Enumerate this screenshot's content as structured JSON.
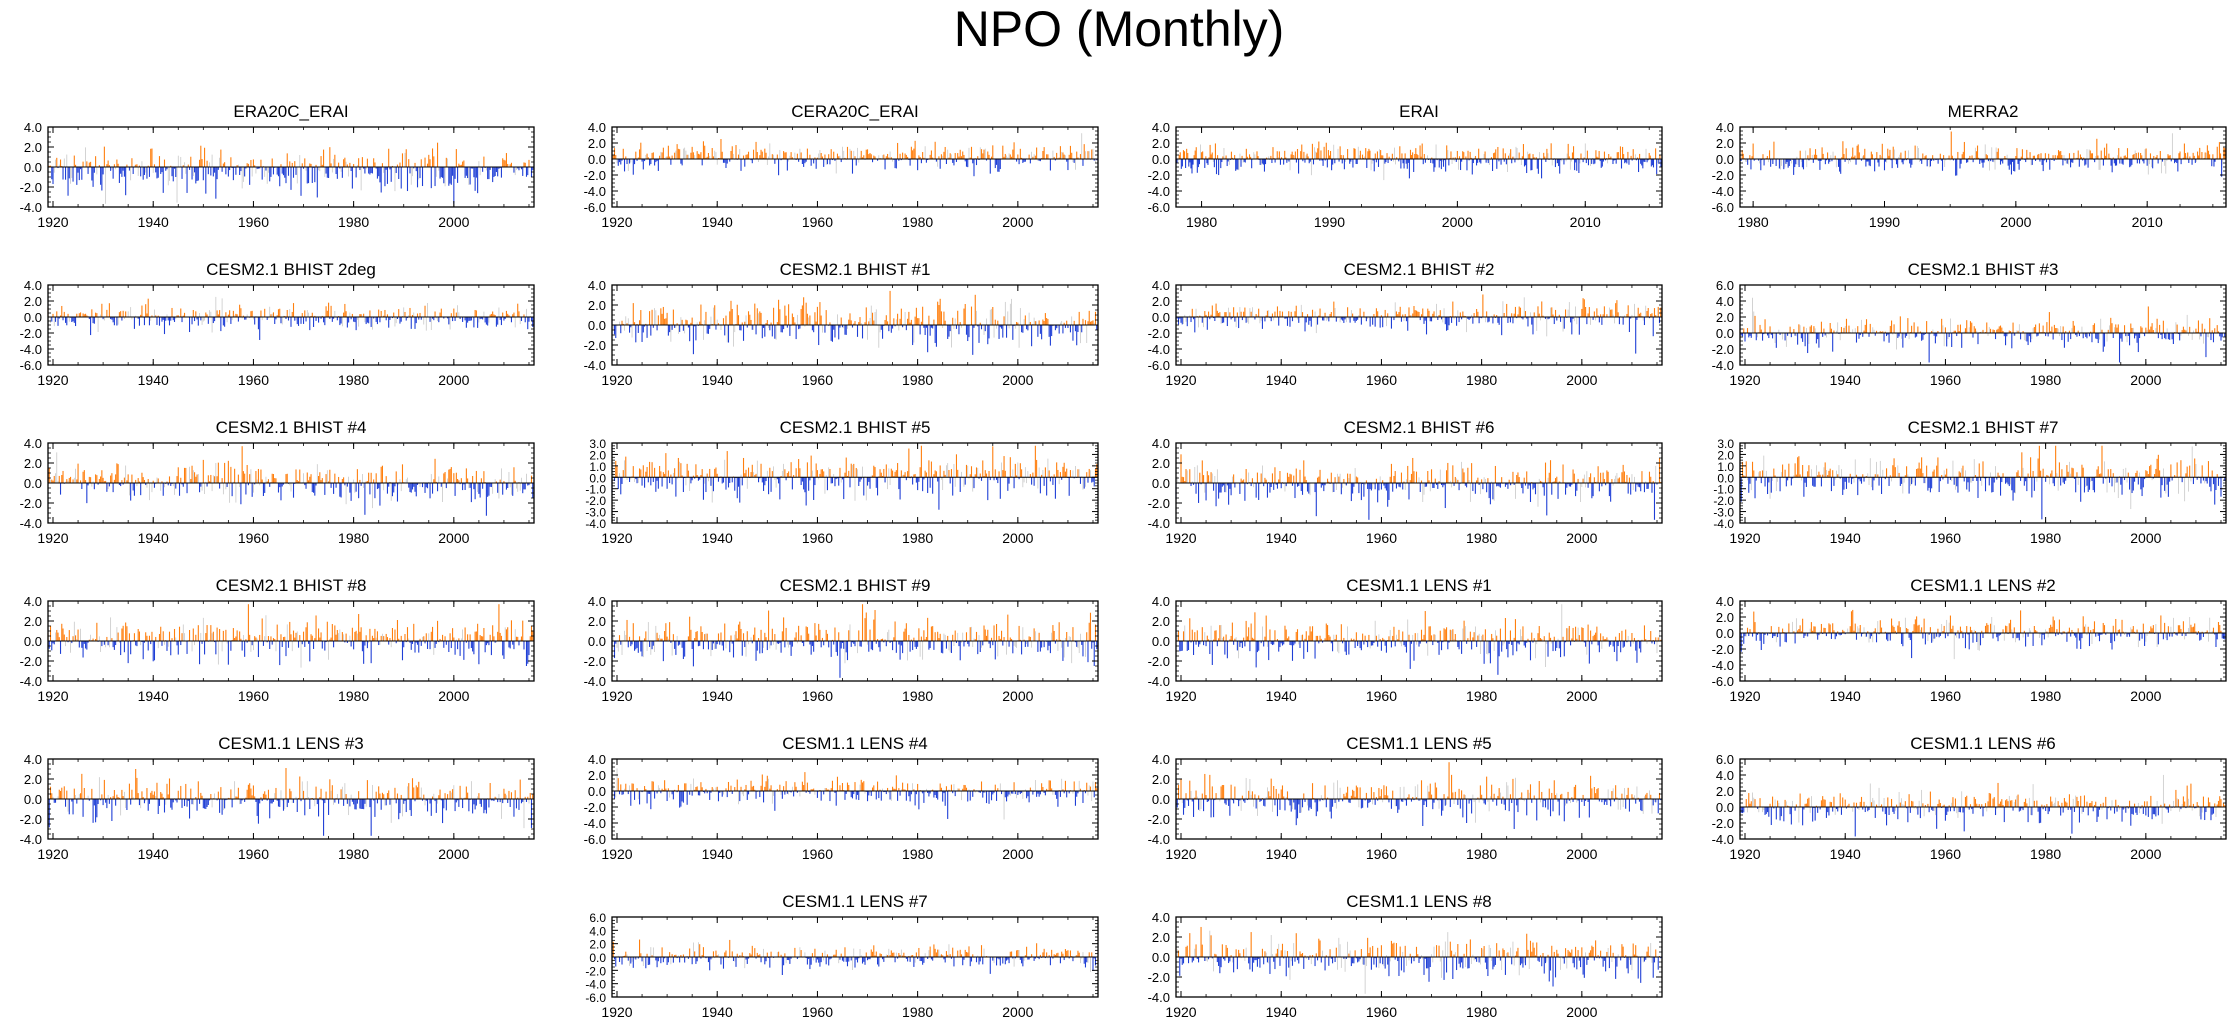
{
  "title": "NPO (Monthly)",
  "colors": {
    "positive": "#ff7f0e",
    "negative": "#1f3fd6",
    "faint": "#c8c8c8",
    "axis": "#000000"
  },
  "chart_data": [
    {
      "type": "bar",
      "title": "ERA20C_ERAI",
      "ylim": [
        -4,
        4
      ],
      "yticks": [
        "4.0",
        "2.0",
        "0.0",
        "-2.0",
        "-4.0"
      ],
      "xlim": [
        1919,
        2016
      ],
      "xticks": [
        1920,
        1940,
        1960,
        1980,
        2000
      ],
      "bias": -0.35,
      "amp": 1.0,
      "seed": 11
    },
    {
      "type": "bar",
      "title": "CERA20C_ERAI",
      "ylim": [
        -6,
        4
      ],
      "yticks": [
        "4.0",
        "2.0",
        "0.0",
        "-2.0",
        "-4.0",
        "-6.0"
      ],
      "xlim": [
        1919,
        2016
      ],
      "xticks": [
        1920,
        1940,
        1960,
        1980,
        2000
      ],
      "bias": 0.2,
      "amp": 0.8,
      "seed": 23
    },
    {
      "type": "bar",
      "title": "ERAI",
      "ylim": [
        -6,
        4
      ],
      "yticks": [
        "4.0",
        "2.0",
        "0.0",
        "-2.0",
        "-4.0",
        "-6.0"
      ],
      "xlim": [
        1978,
        2016
      ],
      "xticks": [
        1980,
        1990,
        2000,
        2010
      ],
      "bias": 0.0,
      "amp": 0.85,
      "seed": 37
    },
    {
      "type": "bar",
      "title": "MERRA2",
      "ylim": [
        -6,
        4
      ],
      "yticks": [
        "4.0",
        "2.0",
        "0.0",
        "-2.0",
        "-4.0",
        "-6.0"
      ],
      "xlim": [
        1979,
        2016
      ],
      "xticks": [
        1980,
        1990,
        2000,
        2010
      ],
      "bias": 0.0,
      "amp": 0.85,
      "seed": 41
    },
    {
      "type": "bar",
      "title": "CESM2.1 BHIST 2deg",
      "ylim": [
        -6,
        4
      ],
      "yticks": [
        "4.0",
        "2.0",
        "0.0",
        "-2.0",
        "-4.0",
        "-6.0"
      ],
      "xlim": [
        1919,
        2016
      ],
      "xticks": [
        1920,
        1940,
        1960,
        1980,
        2000
      ],
      "bias": 0.0,
      "amp": 0.85,
      "seed": 53
    },
    {
      "type": "bar",
      "title": "CESM2.1 BHIST #1",
      "ylim": [
        -4,
        4
      ],
      "yticks": [
        "4.0",
        "2.0",
        "0.0",
        "-2.0",
        "-4.0"
      ],
      "xlim": [
        1919,
        2016
      ],
      "xticks": [
        1920,
        1940,
        1960,
        1980,
        2000
      ],
      "bias": 0.0,
      "amp": 1.0,
      "seed": 67
    },
    {
      "type": "bar",
      "title": "CESM2.1 BHIST #2",
      "ylim": [
        -6,
        4
      ],
      "yticks": [
        "4.0",
        "2.0",
        "0.0",
        "-2.0",
        "-4.0",
        "-6.0"
      ],
      "xlim": [
        1919,
        2016
      ],
      "xticks": [
        1920,
        1940,
        1960,
        1980,
        2000
      ],
      "bias": 0.0,
      "amp": 0.9,
      "seed": 71
    },
    {
      "type": "bar",
      "title": "CESM2.1 BHIST #3",
      "ylim": [
        -4,
        6
      ],
      "yticks": [
        "6.0",
        "4.0",
        "2.0",
        "0.0",
        "-2.0",
        "-4.0"
      ],
      "xlim": [
        1919,
        2016
      ],
      "xticks": [
        1920,
        1940,
        1960,
        1980,
        2000
      ],
      "bias": 0.0,
      "amp": 0.9,
      "seed": 83
    },
    {
      "type": "bar",
      "title": "CESM2.1 BHIST #4",
      "ylim": [
        -4,
        4
      ],
      "yticks": [
        "4.0",
        "2.0",
        "0.0",
        "-2.0",
        "-4.0"
      ],
      "xlim": [
        1919,
        2016
      ],
      "xticks": [
        1920,
        1940,
        1960,
        1980,
        2000
      ],
      "bias": 0.0,
      "amp": 1.0,
      "seed": 97
    },
    {
      "type": "bar",
      "title": "CESM2.1 BHIST #5",
      "ylim": [
        -4,
        3
      ],
      "yticks": [
        "3.0",
        "2.0",
        "1.0",
        "0.0",
        "-1.0",
        "-2.0",
        "-3.0",
        "-4.0"
      ],
      "xlim": [
        1919,
        2016
      ],
      "xticks": [
        1920,
        1940,
        1960,
        1980,
        2000
      ],
      "bias": 0.0,
      "amp": 0.9,
      "seed": 101
    },
    {
      "type": "bar",
      "title": "CESM2.1 BHIST #6",
      "ylim": [
        -4,
        4
      ],
      "yticks": [
        "4.0",
        "2.0",
        "0.0",
        "-2.0",
        "-4.0"
      ],
      "xlim": [
        1919,
        2016
      ],
      "xticks": [
        1920,
        1940,
        1960,
        1980,
        2000
      ],
      "bias": 0.0,
      "amp": 1.0,
      "seed": 113
    },
    {
      "type": "bar",
      "title": "CESM2.1 BHIST #7",
      "ylim": [
        -4,
        3
      ],
      "yticks": [
        "3.0",
        "2.0",
        "1.0",
        "0.0",
        "-1.0",
        "-2.0",
        "-3.0",
        "-4.0"
      ],
      "xlim": [
        1919,
        2016
      ],
      "xticks": [
        1920,
        1940,
        1960,
        1980,
        2000
      ],
      "bias": 0.0,
      "amp": 0.9,
      "seed": 127
    },
    {
      "type": "bar",
      "title": "CESM2.1 BHIST #8",
      "ylim": [
        -4,
        4
      ],
      "yticks": [
        "4.0",
        "2.0",
        "0.0",
        "-2.0",
        "-4.0"
      ],
      "xlim": [
        1919,
        2016
      ],
      "xticks": [
        1920,
        1940,
        1960,
        1980,
        2000
      ],
      "bias": 0.0,
      "amp": 1.0,
      "seed": 131
    },
    {
      "type": "bar",
      "title": "CESM2.1 BHIST #9",
      "ylim": [
        -4,
        4
      ],
      "yticks": [
        "4.0",
        "2.0",
        "0.0",
        "-2.0",
        "-4.0"
      ],
      "xlim": [
        1919,
        2016
      ],
      "xticks": [
        1920,
        1940,
        1960,
        1980,
        2000
      ],
      "bias": 0.0,
      "amp": 1.0,
      "seed": 137
    },
    {
      "type": "bar",
      "title": "CESM1.1 LENS #1",
      "ylim": [
        -4,
        4
      ],
      "yticks": [
        "4.0",
        "2.0",
        "0.0",
        "-2.0",
        "-4.0"
      ],
      "xlim": [
        1919,
        2016
      ],
      "xticks": [
        1920,
        1940,
        1960,
        1980,
        2000
      ],
      "bias": 0.0,
      "amp": 1.0,
      "seed": 149
    },
    {
      "type": "bar",
      "title": "CESM1.1 LENS #2",
      "ylim": [
        -6,
        4
      ],
      "yticks": [
        "4.0",
        "2.0",
        "0.0",
        "-2.0",
        "-4.0",
        "-6.0"
      ],
      "xlim": [
        1919,
        2016
      ],
      "xticks": [
        1920,
        1940,
        1960,
        1980,
        2000
      ],
      "bias": 0.0,
      "amp": 0.85,
      "seed": 151
    },
    {
      "type": "bar",
      "title": "CESM1.1 LENS #3",
      "ylim": [
        -4,
        4
      ],
      "yticks": [
        "4.0",
        "2.0",
        "0.0",
        "-2.0",
        "-4.0"
      ],
      "xlim": [
        1919,
        2016
      ],
      "xticks": [
        1920,
        1940,
        1960,
        1980,
        2000
      ],
      "bias": 0.0,
      "amp": 1.0,
      "seed": 163
    },
    {
      "type": "bar",
      "title": "CESM1.1 LENS #4",
      "ylim": [
        -6,
        4
      ],
      "yticks": [
        "4.0",
        "2.0",
        "0.0",
        "-2.0",
        "-4.0",
        "-6.0"
      ],
      "xlim": [
        1919,
        2016
      ],
      "xticks": [
        1920,
        1940,
        1960,
        1980,
        2000
      ],
      "bias": 0.0,
      "amp": 0.85,
      "seed": 173
    },
    {
      "type": "bar",
      "title": "CESM1.1 LENS #5",
      "ylim": [
        -4,
        4
      ],
      "yticks": [
        "4.0",
        "2.0",
        "0.0",
        "-2.0",
        "-4.0"
      ],
      "xlim": [
        1919,
        2016
      ],
      "xticks": [
        1920,
        1940,
        1960,
        1980,
        2000
      ],
      "bias": 0.0,
      "amp": 1.0,
      "seed": 179
    },
    {
      "type": "bar",
      "title": "CESM1.1 LENS #6",
      "ylim": [
        -4,
        6
      ],
      "yticks": [
        "6.0",
        "4.0",
        "2.0",
        "0.0",
        "-2.0",
        "-4.0"
      ],
      "xlim": [
        1919,
        2016
      ],
      "xticks": [
        1920,
        1940,
        1960,
        1980,
        2000
      ],
      "bias": 0.0,
      "amp": 0.9,
      "seed": 191
    },
    {
      "type": "bar",
      "title": "CESM1.1 LENS #7",
      "ylim": [
        -6,
        6
      ],
      "yticks": [
        "6.0",
        "4.0",
        "2.0",
        "0.0",
        "-2.0",
        "-4.0",
        "-6.0"
      ],
      "xlim": [
        1919,
        2016
      ],
      "xticks": [
        1920,
        1940,
        1960,
        1980,
        2000
      ],
      "bias": 0.0,
      "amp": 0.85,
      "seed": 193
    },
    {
      "type": "bar",
      "title": "CESM1.1 LENS #8",
      "ylim": [
        -4,
        4
      ],
      "yticks": [
        "4.0",
        "2.0",
        "0.0",
        "-2.0",
        "-4.0"
      ],
      "xlim": [
        1919,
        2016
      ],
      "xticks": [
        1920,
        1940,
        1960,
        1980,
        2000
      ],
      "bias": 0.0,
      "amp": 1.0,
      "seed": 197
    }
  ]
}
